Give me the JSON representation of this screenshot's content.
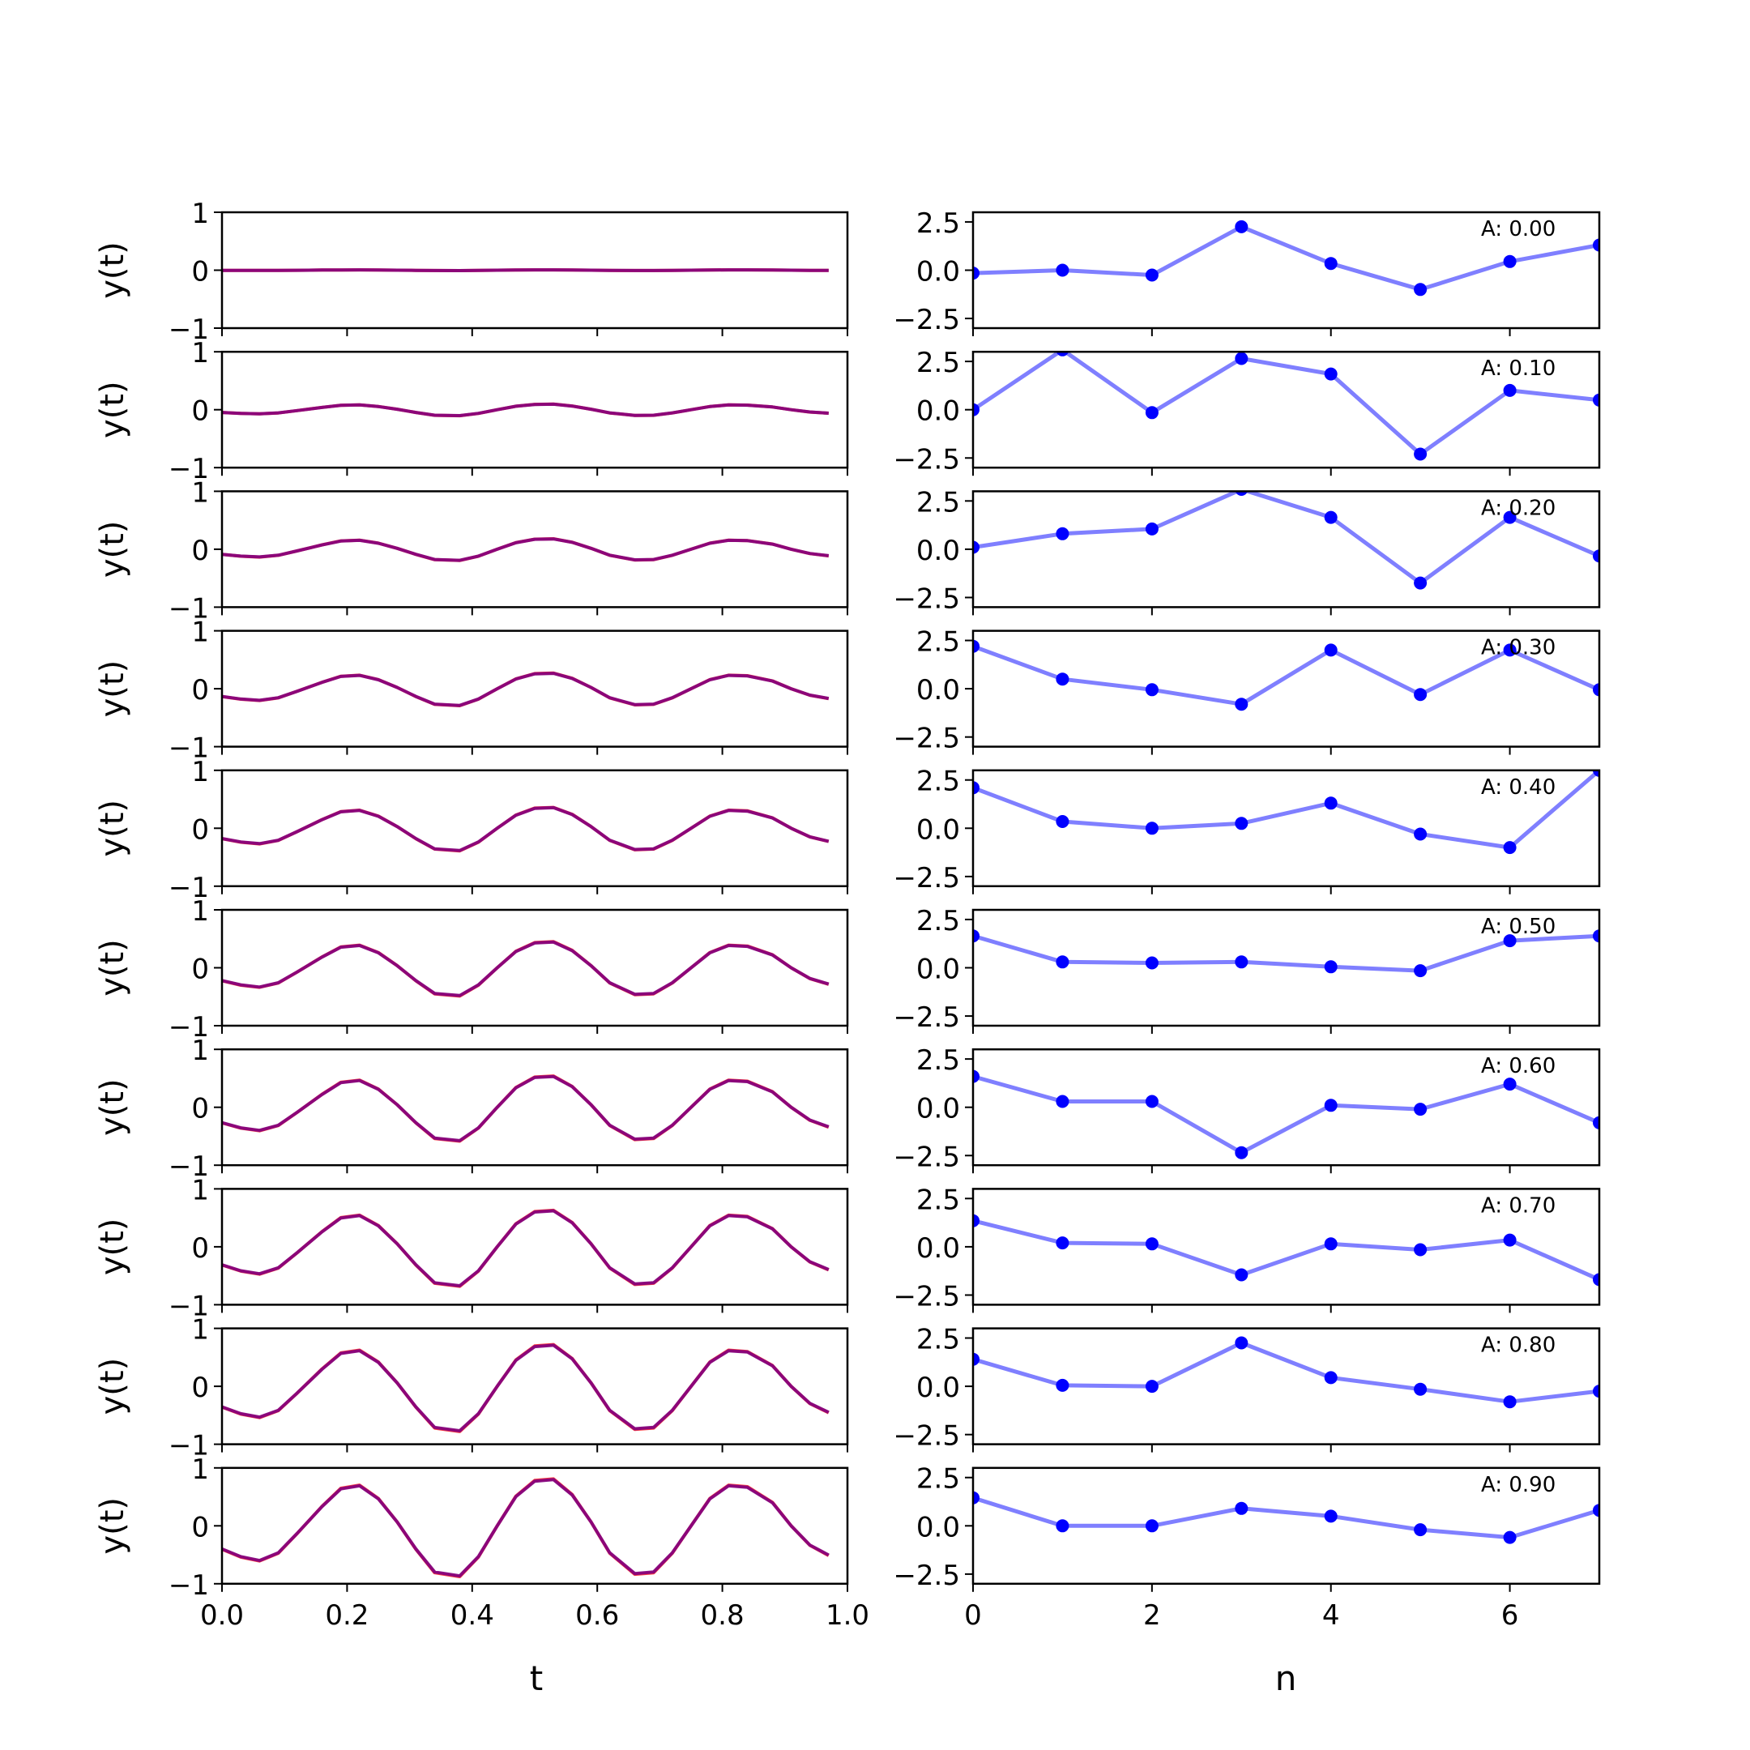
{
  "figure": {
    "left_panel_xlabel": "t",
    "right_panel_xlabel": "n"
  },
  "chart_data": [
    {
      "type": "line",
      "panel": "left",
      "description_text": "y(t) subplots (10 rows)",
      "xlabel": "t",
      "ylabel": "y(t)",
      "xlim": [
        0.0,
        1.0
      ],
      "ylim": [
        -1,
        1
      ],
      "xticks": [
        "0.0",
        "0.2",
        "0.4",
        "0.6",
        "0.8",
        "1.0"
      ],
      "yticks": [
        "-1",
        "0",
        "1"
      ],
      "colors": {
        "series_a": "#ff0000",
        "series_b": "#0000ff",
        "overlap": "#800080"
      },
      "t": [
        0.0,
        0.03,
        0.06,
        0.09,
        0.12,
        0.16,
        0.19,
        0.22,
        0.25,
        0.28,
        0.31,
        0.34,
        0.38,
        0.41,
        0.44,
        0.47,
        0.5,
        0.53,
        0.56,
        0.59,
        0.62,
        0.66,
        0.69,
        0.72,
        0.75,
        0.78,
        0.81,
        0.84,
        0.88,
        0.91,
        0.94,
        0.97
      ],
      "shape": [
        -0.3,
        -0.4,
        -0.45,
        -0.35,
        -0.1,
        0.25,
        0.48,
        0.52,
        0.35,
        0.05,
        -0.3,
        -0.6,
        -0.65,
        -0.4,
        0.0,
        0.38,
        0.58,
        0.6,
        0.4,
        0.05,
        -0.35,
        -0.62,
        -0.6,
        -0.35,
        0.0,
        0.35,
        0.52,
        0.5,
        0.3,
        0.0,
        -0.25,
        -0.38
      ],
      "rows": [
        {
          "A": 0.0,
          "amplitude": 0.01
        },
        {
          "A": 0.1,
          "amplitude": 0.16
        },
        {
          "A": 0.2,
          "amplitude": 0.3
        },
        {
          "A": 0.3,
          "amplitude": 0.45
        },
        {
          "A": 0.4,
          "amplitude": 0.6
        },
        {
          "A": 0.5,
          "amplitude": 0.75
        },
        {
          "A": 0.6,
          "amplitude": 0.9
        },
        {
          "A": 0.7,
          "amplitude": 1.05
        },
        {
          "A": 0.8,
          "amplitude": 1.2
        },
        {
          "A": 0.9,
          "amplitude": 1.35
        }
      ]
    },
    {
      "type": "line",
      "panel": "right",
      "xlabel": "n",
      "xlim": [
        0,
        7
      ],
      "ylim": [
        -3.0,
        3.0
      ],
      "xticks": [
        "0",
        "2",
        "4",
        "6"
      ],
      "yticks": [
        "2.5",
        "0.0",
        "-2.5"
      ],
      "colors": {
        "line": "#0000ff",
        "line_alpha": 0.5,
        "marker": "#0000ff"
      },
      "n": [
        0,
        1,
        2,
        3,
        4,
        5,
        6,
        7
      ],
      "series": [
        {
          "label": "A: 0.00",
          "values": [
            -0.15,
            0.0,
            -0.25,
            2.25,
            0.35,
            -1.0,
            0.45,
            1.3
          ]
        },
        {
          "label": "A: 0.10",
          "values": [
            0.0,
            3.1,
            -0.15,
            2.65,
            1.85,
            -2.3,
            1.0,
            0.5
          ]
        },
        {
          "label": "A: 0.20",
          "values": [
            0.1,
            0.8,
            1.05,
            3.1,
            1.65,
            -1.75,
            1.65,
            -0.35
          ]
        },
        {
          "label": "A: 0.30",
          "values": [
            2.2,
            0.5,
            -0.05,
            -0.8,
            2.0,
            -0.3,
            2.0,
            -0.05
          ]
        },
        {
          "label": "A: 0.40",
          "values": [
            2.1,
            0.35,
            0.0,
            0.25,
            1.3,
            -0.3,
            -1.0,
            3.0
          ]
        },
        {
          "label": "A: 0.50",
          "values": [
            1.65,
            0.3,
            0.25,
            0.3,
            0.05,
            -0.15,
            1.4,
            1.65
          ]
        },
        {
          "label": "A: 0.60",
          "values": [
            1.6,
            0.3,
            0.3,
            -2.35,
            0.1,
            -0.1,
            1.2,
            -0.8
          ]
        },
        {
          "label": "A: 0.70",
          "values": [
            1.35,
            0.2,
            0.15,
            -1.45,
            0.15,
            -0.15,
            0.35,
            -1.7
          ]
        },
        {
          "label": "A: 0.80",
          "values": [
            1.4,
            0.05,
            0.0,
            2.25,
            0.45,
            -0.15,
            -0.8,
            -0.25
          ]
        },
        {
          "label": "A: 0.90",
          "values": [
            1.45,
            0.0,
            0.0,
            0.9,
            0.5,
            -0.2,
            -0.6,
            0.8
          ]
        }
      ]
    }
  ]
}
